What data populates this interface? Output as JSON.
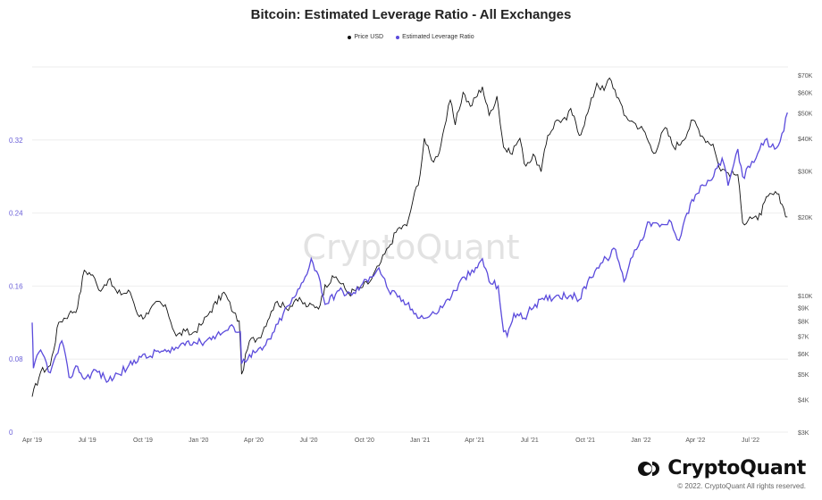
{
  "title": "Bitcoin: Estimated Leverage Ratio - All Exchanges",
  "legend": [
    {
      "label": "Price USD",
      "color": "#111111"
    },
    {
      "label": "Estimated Leverage Ratio",
      "color": "#5b4bdc"
    }
  ],
  "watermark": "CryptoQuant",
  "logo_text": "CryptoQuant",
  "footer": "© 2022. CryptoQuant All rights reserved.",
  "chart_data": {
    "type": "line",
    "title": "Bitcoin: Estimated Leverage Ratio - All Exchanges",
    "xlabel": "",
    "ylabel_left": "",
    "ylabel_right": "",
    "x_ticks": [
      "Apr '19",
      "Jul '19",
      "Oct '19",
      "Jan '20",
      "Apr '20",
      "Jul '20",
      "Oct '20",
      "Jan '21",
      "Apr '21",
      "Jul '21",
      "Oct '21",
      "Jan '22",
      "Apr '22",
      "Jul '22"
    ],
    "left_axis": {
      "ticks": [
        "0",
        "0.08",
        "0.16",
        "0.24",
        "0.32"
      ],
      "ylim": [
        0,
        0.4
      ]
    },
    "right_axis": {
      "scale": "log",
      "ticks": [
        "$3K",
        "$4K",
        "$5K",
        "$6K",
        "$7K",
        "$8K",
        "$9K",
        "$10K",
        "$20K",
        "$30K",
        "$40K",
        "$50K",
        "$60K",
        "$70K"
      ],
      "ylim": [
        3000,
        75000
      ]
    },
    "grid": "horizontal",
    "legend_position": "top-center",
    "series": [
      {
        "name": "Price USD",
        "axis": "right",
        "color": "#111111",
        "points": [
          [
            "2019-04-01",
            4100
          ],
          [
            "2019-04-15",
            5100
          ],
          [
            "2019-05-01",
            5400
          ],
          [
            "2019-05-15",
            7900
          ],
          [
            "2019-06-01",
            8500
          ],
          [
            "2019-06-15",
            9000
          ],
          [
            "2019-06-26",
            12500
          ],
          [
            "2019-07-10",
            12000
          ],
          [
            "2019-07-20",
            10500
          ],
          [
            "2019-08-05",
            11500
          ],
          [
            "2019-08-20",
            10200
          ],
          [
            "2019-09-10",
            10300
          ],
          [
            "2019-09-25",
            8300
          ],
          [
            "2019-10-10",
            8500
          ],
          [
            "2019-10-26",
            9500
          ],
          [
            "2019-11-10",
            8800
          ],
          [
            "2019-11-25",
            7000
          ],
          [
            "2019-12-10",
            7300
          ],
          [
            "2019-12-20",
            7100
          ],
          [
            "2020-01-05",
            7700
          ],
          [
            "2020-01-20",
            8700
          ],
          [
            "2020-02-12",
            10300
          ],
          [
            "2020-02-28",
            8600
          ],
          [
            "2020-03-08",
            8000
          ],
          [
            "2020-03-12",
            5000
          ],
          [
            "2020-03-25",
            6700
          ],
          [
            "2020-04-10",
            6900
          ],
          [
            "2020-04-30",
            8700
          ],
          [
            "2020-05-10",
            9500
          ],
          [
            "2020-05-25",
            8900
          ],
          [
            "2020-06-10",
            9700
          ],
          [
            "2020-06-30",
            9100
          ],
          [
            "2020-07-20",
            9200
          ],
          [
            "2020-07-28",
            11000
          ],
          [
            "2020-08-15",
            11800
          ],
          [
            "2020-09-05",
            10200
          ],
          [
            "2020-09-25",
            10700
          ],
          [
            "2020-10-10",
            11300
          ],
          [
            "2020-10-25",
            13000
          ],
          [
            "2020-11-10",
            15300
          ],
          [
            "2020-11-25",
            18000
          ],
          [
            "2020-12-10",
            18500
          ],
          [
            "2020-12-20",
            23000
          ],
          [
            "2021-01-01",
            29000
          ],
          [
            "2021-01-08",
            40000
          ],
          [
            "2021-01-20",
            33000
          ],
          [
            "2021-01-30",
            34000
          ],
          [
            "2021-02-10",
            44000
          ],
          [
            "2021-02-20",
            56000
          ],
          [
            "2021-02-28",
            45000
          ],
          [
            "2021-03-13",
            60000
          ],
          [
            "2021-03-25",
            53000
          ],
          [
            "2021-04-14",
            63000
          ],
          [
            "2021-04-25",
            49000
          ],
          [
            "2021-05-08",
            58000
          ],
          [
            "2021-05-19",
            37000
          ],
          [
            "2021-05-30",
            35000
          ],
          [
            "2021-06-15",
            40000
          ],
          [
            "2021-06-22",
            32000
          ],
          [
            "2021-07-10",
            34000
          ],
          [
            "2021-07-20",
            29800
          ],
          [
            "2021-07-31",
            41000
          ],
          [
            "2021-08-15",
            47000
          ],
          [
            "2021-08-31",
            47000
          ],
          [
            "2021-09-07",
            52000
          ],
          [
            "2021-09-21",
            41000
          ],
          [
            "2021-10-05",
            50000
          ],
          [
            "2021-10-20",
            65000
          ],
          [
            "2021-11-01",
            61000
          ],
          [
            "2021-11-10",
            68000
          ],
          [
            "2021-11-25",
            57000
          ],
          [
            "2021-12-04",
            49000
          ],
          [
            "2021-12-20",
            46000
          ],
          [
            "2022-01-05",
            43000
          ],
          [
            "2022-01-22",
            35000
          ],
          [
            "2022-02-10",
            44000
          ],
          [
            "2022-02-24",
            37000
          ],
          [
            "2022-03-10",
            39000
          ],
          [
            "2022-03-28",
            47000
          ],
          [
            "2022-04-15",
            40000
          ],
          [
            "2022-04-30",
            38000
          ],
          [
            "2022-05-10",
            31000
          ],
          [
            "2022-05-25",
            29500
          ],
          [
            "2022-06-10",
            29000
          ],
          [
            "2022-06-18",
            19000
          ],
          [
            "2022-06-30",
            20000
          ],
          [
            "2022-07-13",
            19500
          ],
          [
            "2022-07-30",
            24000
          ],
          [
            "2022-08-14",
            24500
          ],
          [
            "2022-08-25",
            21500
          ],
          [
            "2022-08-31",
            20000
          ]
        ]
      },
      {
        "name": "Estimated Leverage Ratio",
        "axis": "left",
        "color": "#5b4bdc",
        "points": [
          [
            "2019-04-01",
            0.12
          ],
          [
            "2019-04-03",
            0.07
          ],
          [
            "2019-04-15",
            0.09
          ],
          [
            "2019-05-01",
            0.065
          ],
          [
            "2019-05-20",
            0.1
          ],
          [
            "2019-06-01",
            0.06
          ],
          [
            "2019-06-15",
            0.072
          ],
          [
            "2019-06-26",
            0.058
          ],
          [
            "2019-07-15",
            0.068
          ],
          [
            "2019-08-05",
            0.056
          ],
          [
            "2019-08-20",
            0.064
          ],
          [
            "2019-09-05",
            0.07
          ],
          [
            "2019-09-25",
            0.083
          ],
          [
            "2019-10-10",
            0.082
          ],
          [
            "2019-10-26",
            0.089
          ],
          [
            "2019-11-15",
            0.087
          ],
          [
            "2019-12-01",
            0.095
          ],
          [
            "2019-12-15",
            0.1
          ],
          [
            "2020-01-05",
            0.098
          ],
          [
            "2020-01-25",
            0.105
          ],
          [
            "2020-02-12",
            0.11
          ],
          [
            "2020-02-28",
            0.115
          ],
          [
            "2020-03-10",
            0.11
          ],
          [
            "2020-03-12",
            0.075
          ],
          [
            "2020-03-25",
            0.085
          ],
          [
            "2020-04-15",
            0.09
          ],
          [
            "2020-05-05",
            0.11
          ],
          [
            "2020-05-20",
            0.13
          ],
          [
            "2020-06-10",
            0.15
          ],
          [
            "2020-06-25",
            0.17
          ],
          [
            "2020-07-05",
            0.19
          ],
          [
            "2020-07-20",
            0.165
          ],
          [
            "2020-07-28",
            0.14
          ],
          [
            "2020-08-20",
            0.155
          ],
          [
            "2020-09-10",
            0.15
          ],
          [
            "2020-09-25",
            0.16
          ],
          [
            "2020-10-10",
            0.17
          ],
          [
            "2020-10-25",
            0.18
          ],
          [
            "2020-11-10",
            0.155
          ],
          [
            "2020-11-25",
            0.148
          ],
          [
            "2020-12-10",
            0.14
          ],
          [
            "2020-12-25",
            0.13
          ],
          [
            "2021-01-10",
            0.125
          ],
          [
            "2021-01-25",
            0.13
          ],
          [
            "2021-02-10",
            0.14
          ],
          [
            "2021-02-28",
            0.155
          ],
          [
            "2021-03-15",
            0.17
          ],
          [
            "2021-03-31",
            0.175
          ],
          [
            "2021-04-14",
            0.19
          ],
          [
            "2021-04-25",
            0.165
          ],
          [
            "2021-05-10",
            0.16
          ],
          [
            "2021-05-19",
            0.11
          ],
          [
            "2021-05-25",
            0.105
          ],
          [
            "2021-06-05",
            0.13
          ],
          [
            "2021-06-22",
            0.125
          ],
          [
            "2021-07-10",
            0.14
          ],
          [
            "2021-07-25",
            0.145
          ],
          [
            "2021-08-15",
            0.15
          ],
          [
            "2021-09-07",
            0.15
          ],
          [
            "2021-09-21",
            0.145
          ],
          [
            "2021-10-05",
            0.165
          ],
          [
            "2021-10-20",
            0.18
          ],
          [
            "2021-11-05",
            0.19
          ],
          [
            "2021-11-20",
            0.2
          ],
          [
            "2021-12-04",
            0.165
          ],
          [
            "2021-12-15",
            0.19
          ],
          [
            "2021-12-31",
            0.21
          ],
          [
            "2022-01-15",
            0.23
          ],
          [
            "2022-02-01",
            0.225
          ],
          [
            "2022-02-20",
            0.23
          ],
          [
            "2022-03-05",
            0.21
          ],
          [
            "2022-03-15",
            0.235
          ],
          [
            "2022-04-01",
            0.26
          ],
          [
            "2022-04-15",
            0.27
          ],
          [
            "2022-05-01",
            0.28
          ],
          [
            "2022-05-15",
            0.3
          ],
          [
            "2022-05-25",
            0.27
          ],
          [
            "2022-06-10",
            0.31
          ],
          [
            "2022-06-18",
            0.28
          ],
          [
            "2022-06-30",
            0.29
          ],
          [
            "2022-07-10",
            0.3
          ],
          [
            "2022-07-25",
            0.32
          ],
          [
            "2022-08-10",
            0.31
          ],
          [
            "2022-08-25",
            0.33
          ],
          [
            "2022-08-31",
            0.35
          ]
        ]
      }
    ]
  }
}
